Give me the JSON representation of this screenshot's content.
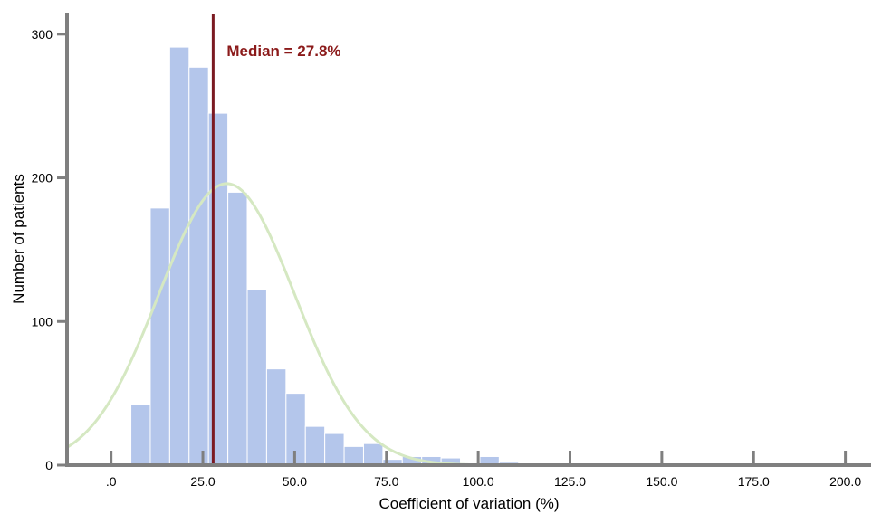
{
  "chart_data": {
    "type": "bar",
    "xlabel": "Coefficient of variation (%)",
    "ylabel": "Number of patients",
    "xlim": [
      -12,
      207
    ],
    "ylim": [
      0,
      315
    ],
    "x_ticks": [
      0,
      25,
      50,
      75,
      100,
      125,
      150,
      175,
      200
    ],
    "x_tick_labels": [
      ".0",
      "25.0",
      "50.0",
      "75.0",
      "100.0",
      "125.0",
      "150.0",
      "175.0",
      "200.0"
    ],
    "y_ticks": [
      0,
      100,
      200,
      300
    ],
    "y_tick_labels": [
      "0",
      "100",
      "200",
      "300"
    ],
    "bin_width": 5.28,
    "bins": [
      {
        "start": 5.4,
        "count": 42
      },
      {
        "start": 10.68,
        "count": 179
      },
      {
        "start": 15.96,
        "count": 291
      },
      {
        "start": 21.24,
        "count": 277
      },
      {
        "start": 26.52,
        "count": 245
      },
      {
        "start": 31.8,
        "count": 190
      },
      {
        "start": 37.08,
        "count": 122
      },
      {
        "start": 42.36,
        "count": 67
      },
      {
        "start": 47.64,
        "count": 50
      },
      {
        "start": 52.92,
        "count": 27
      },
      {
        "start": 58.2,
        "count": 22
      },
      {
        "start": 63.48,
        "count": 13
      },
      {
        "start": 68.76,
        "count": 15
      },
      {
        "start": 74.04,
        "count": 4
      },
      {
        "start": 79.32,
        "count": 6
      },
      {
        "start": 84.6,
        "count": 6
      },
      {
        "start": 89.88,
        "count": 5
      },
      {
        "start": 95.16,
        "count": 1
      },
      {
        "start": 100.44,
        "count": 6
      },
      {
        "start": 105.72,
        "count": 2
      },
      {
        "start": 111.0,
        "count": 1
      },
      {
        "start": 137.4,
        "count": 1
      }
    ],
    "normal_curve": {
      "mean": 31.5,
      "sd": 18.5,
      "peak": 196
    },
    "median": {
      "value": 27.8,
      "label": "Median = 27.8%"
    },
    "grid": false,
    "colors": {
      "bars": "#b4c6eb",
      "curve": "#d5e8c2",
      "median_line": "#7b1a22",
      "median_text": "#8b1a1a",
      "axis": "#7f7f7f"
    }
  }
}
